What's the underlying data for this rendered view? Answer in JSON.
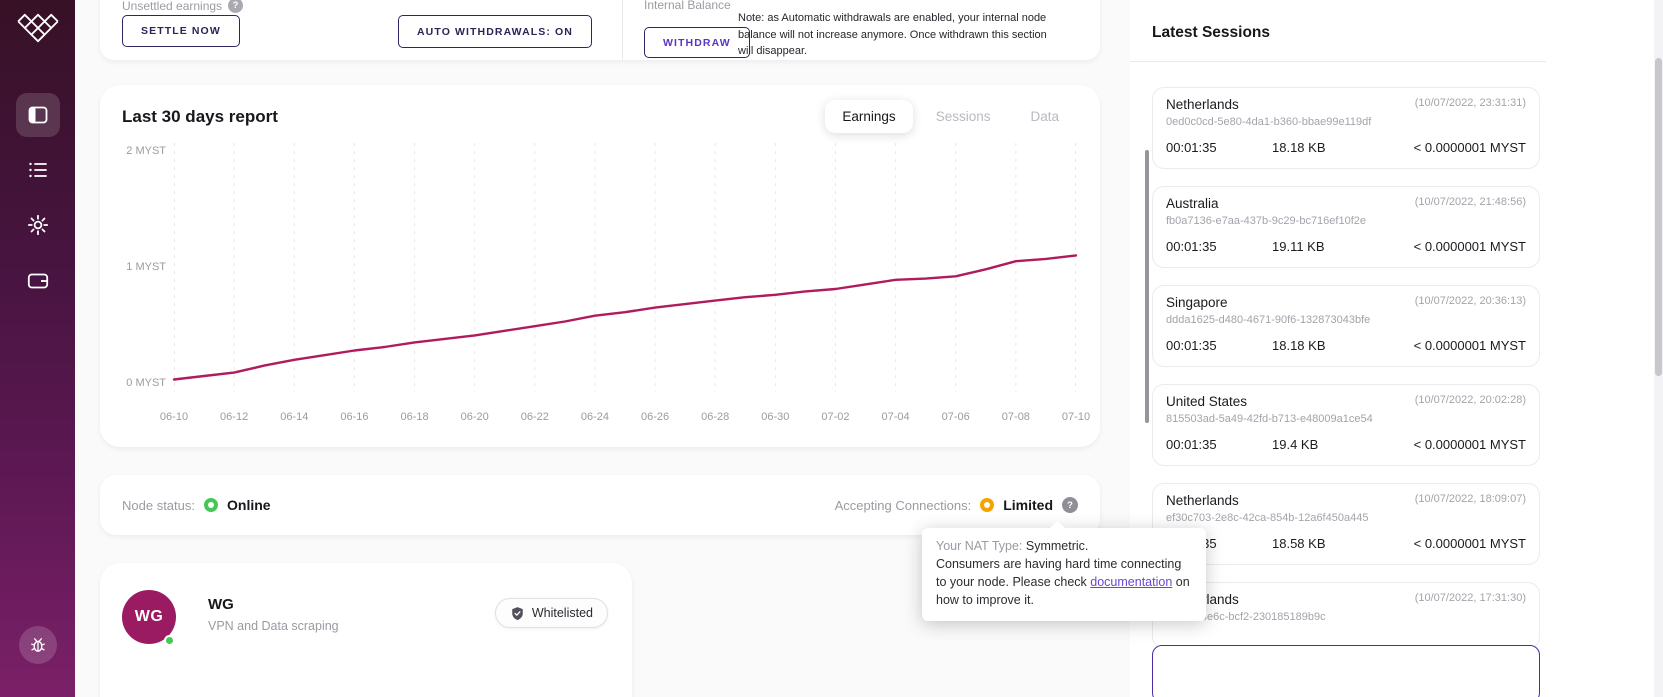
{
  "colors": {
    "accent": "#9b1b62",
    "chart_line": "#b01b5e",
    "button_border": "#2e2660",
    "link": "#6b46d6",
    "online": "#47c756",
    "limited": "#f5a300"
  },
  "sidebar": {
    "icons": [
      "mysterium-logo",
      "dashboard-panel-icon",
      "sessions-list-icon",
      "settings-gear-icon",
      "wallet-icon",
      "bug-report-icon"
    ]
  },
  "earnings_bar": {
    "unsettled_label": "Unsettled earnings",
    "settle_button": "SETTLE NOW",
    "auto_withdrawals_button": "AUTO WITHDRAWALS: ON",
    "internal_balance_label": "Internal Balance",
    "withdraw_button": "WITHDRAW",
    "note": "Note: as Automatic withdrawals are enabled, your internal node balance will not increase anymore. Once withdrawn this section will disappear."
  },
  "report_card": {
    "title": "Last 30 days report",
    "tabs": {
      "earnings": "Earnings",
      "sessions": "Sessions",
      "data": "Data"
    }
  },
  "chart_data": {
    "type": "line",
    "title": "Last 30 days report",
    "xlabel": "",
    "ylabel": "MYST",
    "ylim": [
      0,
      2
    ],
    "grid": "vertical-dashed",
    "legend": "none",
    "line_color": "#b01b5e",
    "tick_labels": [
      "06-10",
      "06-12",
      "06-14",
      "06-16",
      "06-18",
      "06-20",
      "06-22",
      "06-24",
      "06-26",
      "06-28",
      "06-30",
      "07-02",
      "07-04",
      "07-06",
      "07-08",
      "07-10"
    ],
    "ytick_labels": [
      "2 MYST",
      "1 MYST",
      "0 MYST"
    ],
    "series": [
      {
        "name": "Earnings (MYST)",
        "values": [
          0.03,
          0.06,
          0.09,
          0.15,
          0.2,
          0.24,
          0.28,
          0.31,
          0.35,
          0.38,
          0.41,
          0.45,
          0.49,
          0.53,
          0.58,
          0.61,
          0.65,
          0.68,
          0.71,
          0.74,
          0.76,
          0.79,
          0.81,
          0.85,
          0.89,
          0.9,
          0.92,
          0.98,
          1.05,
          1.07,
          1.1
        ]
      }
    ]
  },
  "status_bar": {
    "node_label": "Node status:",
    "node_value": "Online",
    "accepting_label": "Accepting Connections:",
    "accepting_value": "Limited"
  },
  "nat_tooltip": {
    "label": "Your NAT Type: ",
    "value": "Symmetric.",
    "body_1": "Consumers are having hard time connecting to your node. Please check ",
    "link": "documentation",
    "body_2": " on how to improve it."
  },
  "service_card": {
    "avatar_initials": "WG",
    "name": "WG",
    "subtitle": "VPN and Data scraping",
    "badge": "Whitelisted"
  },
  "sessions_panel": {
    "title": "Latest Sessions",
    "sessions": [
      {
        "country": "Netherlands",
        "id": "0ed0c0cd-5e80-4da1-b360-bbae99e119df",
        "date": "(10/07/2022, 23:31:31)",
        "duration": "00:01:35",
        "size": "18.18 KB",
        "price": "< 0.0000001 MYST"
      },
      {
        "country": "Australia",
        "id": "fb0a7136-e7aa-437b-9c29-bc716ef10f2e",
        "date": "(10/07/2022, 21:48:56)",
        "duration": "00:01:35",
        "size": "19.11 KB",
        "price": "< 0.0000001 MYST"
      },
      {
        "country": "Singapore",
        "id": "ddda1625-d480-4671-90f6-132873043bfe",
        "date": "(10/07/2022, 20:36:13)",
        "duration": "00:01:35",
        "size": "18.18 KB",
        "price": "< 0.0000001 MYST"
      },
      {
        "country": "United States",
        "id": "815503ad-5a49-42fd-b713-e48009a1ce54",
        "date": "(10/07/2022, 20:02:28)",
        "duration": "00:01:35",
        "size": "19.4 KB",
        "price": "< 0.0000001 MYST"
      },
      {
        "country": "Netherlands",
        "id": "ef30c703-2e8c-42ca-854b-12a6f450a445",
        "date": "(10/07/2022, 18:09:07)",
        "duration": "00:01:35",
        "size": "18.58 KB",
        "price": "< 0.0000001 MYST"
      },
      {
        "country": "Netherlands",
        "id": "b-f968-4e6c-bcf2-230185189b9c",
        "date": "(10/07/2022, 17:31:30)",
        "duration": "",
        "size": "",
        "price": ""
      }
    ]
  }
}
